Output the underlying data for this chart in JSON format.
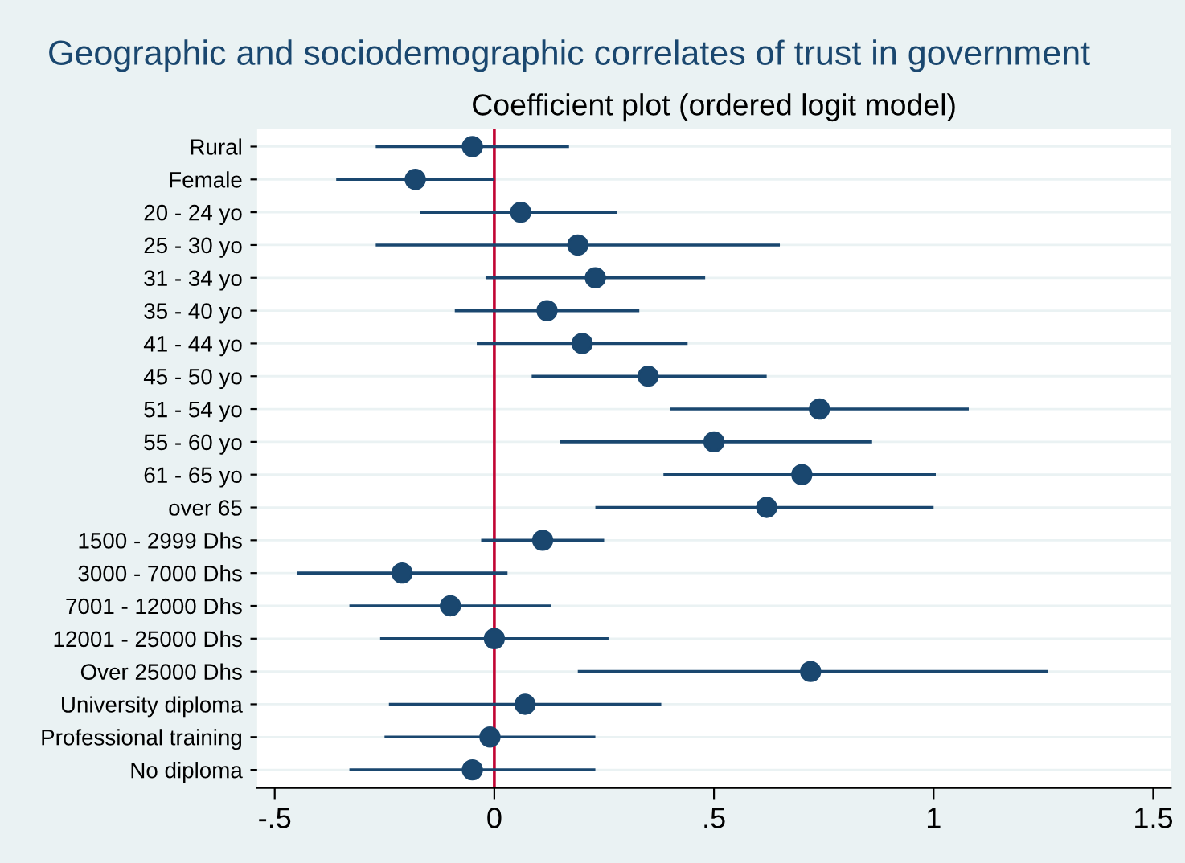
{
  "chart_data": {
    "type": "scatter",
    "orientation": "horizontal",
    "title": "Geographic and sociodemographic correlates of trust in government",
    "subtitle": "Coefficient plot (ordered logit model)",
    "categories": [
      "Rural",
      "Female",
      "20 - 24 yo",
      "25 - 30 yo",
      "31 - 34 yo",
      "35 - 40 yo",
      "41 - 44 yo",
      "45 - 50 yo",
      "51 - 54 yo",
      "55 - 60 yo",
      "61 - 65 yo",
      "over 65",
      "1500 - 2999 Dhs",
      "3000 - 7000 Dhs",
      "7001 - 12000 Dhs",
      "12001 - 25000 Dhs",
      "Over 25000 Dhs",
      "University diploma",
      "Professional training",
      "No diploma"
    ],
    "color": "#1a476f",
    "values": [
      -0.05,
      -0.18,
      0.06,
      0.19,
      0.23,
      0.12,
      0.2,
      0.35,
      0.74,
      0.5,
      0.7,
      0.62,
      0.11,
      -0.21,
      -0.1,
      0.0,
      0.72,
      0.07,
      -0.01,
      -0.05
    ],
    "errors": [
      [
        -0.27,
        0.17
      ],
      [
        -0.36,
        0.0
      ],
      [
        -0.17,
        0.28
      ],
      [
        -0.27,
        0.65
      ],
      [
        -0.02,
        0.48
      ],
      [
        -0.09,
        0.33
      ],
      [
        -0.04,
        0.44
      ],
      [
        0.085,
        0.62
      ],
      [
        0.4,
        1.08
      ],
      [
        0.15,
        0.86
      ],
      [
        0.385,
        1.005
      ],
      [
        0.23,
        1.0
      ],
      [
        -0.03,
        0.25
      ],
      [
        -0.45,
        0.03
      ],
      [
        -0.33,
        0.13
      ],
      [
        -0.26,
        0.26
      ],
      [
        0.19,
        1.26
      ],
      [
        -0.24,
        0.38
      ],
      [
        -0.25,
        0.23
      ],
      [
        -0.33,
        0.23
      ]
    ],
    "xlim": [
      -0.54,
      1.54
    ],
    "xticks": [
      {
        "value": -0.5,
        "label": "-.5"
      },
      0,
      {
        "value": 0.5,
        "label": ".5"
      },
      1,
      {
        "value": 1.5,
        "label": "1.5"
      }
    ],
    "ref_lines": [
      {
        "axis": "x",
        "value": 0,
        "color": "#c10534"
      }
    ],
    "grid": "y",
    "marker": "circle"
  }
}
